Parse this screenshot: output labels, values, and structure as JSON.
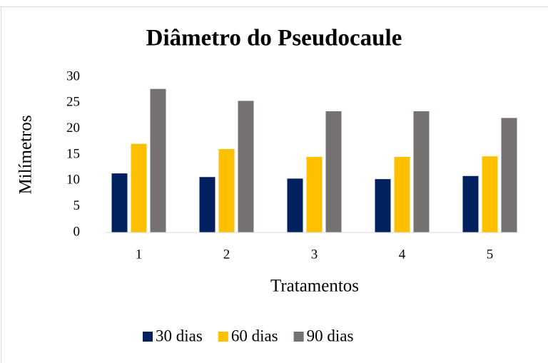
{
  "chart_data": {
    "type": "bar",
    "title": "Diâmetro do Pseudocaule",
    "x_label": "Tratamentos",
    "y_label": "Milímetros",
    "categories": [
      "1",
      "2",
      "3",
      "4",
      "5"
    ],
    "series": [
      {
        "name": "30 dias",
        "color": "#002060",
        "values": [
          11.4,
          10.7,
          10.4,
          10.3,
          10.9
        ]
      },
      {
        "name": "60 dias",
        "color": "#ffc000",
        "values": [
          17.1,
          16.1,
          14.6,
          14.6,
          14.7
        ]
      },
      {
        "name": "90 dias",
        "color": "#767171",
        "values": [
          27.7,
          25.4,
          23.4,
          23.4,
          22.1
        ]
      }
    ],
    "ylim": [
      0,
      30
    ],
    "yticks": [
      0,
      5,
      10,
      15,
      20,
      25,
      30
    ],
    "grid": false,
    "legend": "bottom"
  }
}
